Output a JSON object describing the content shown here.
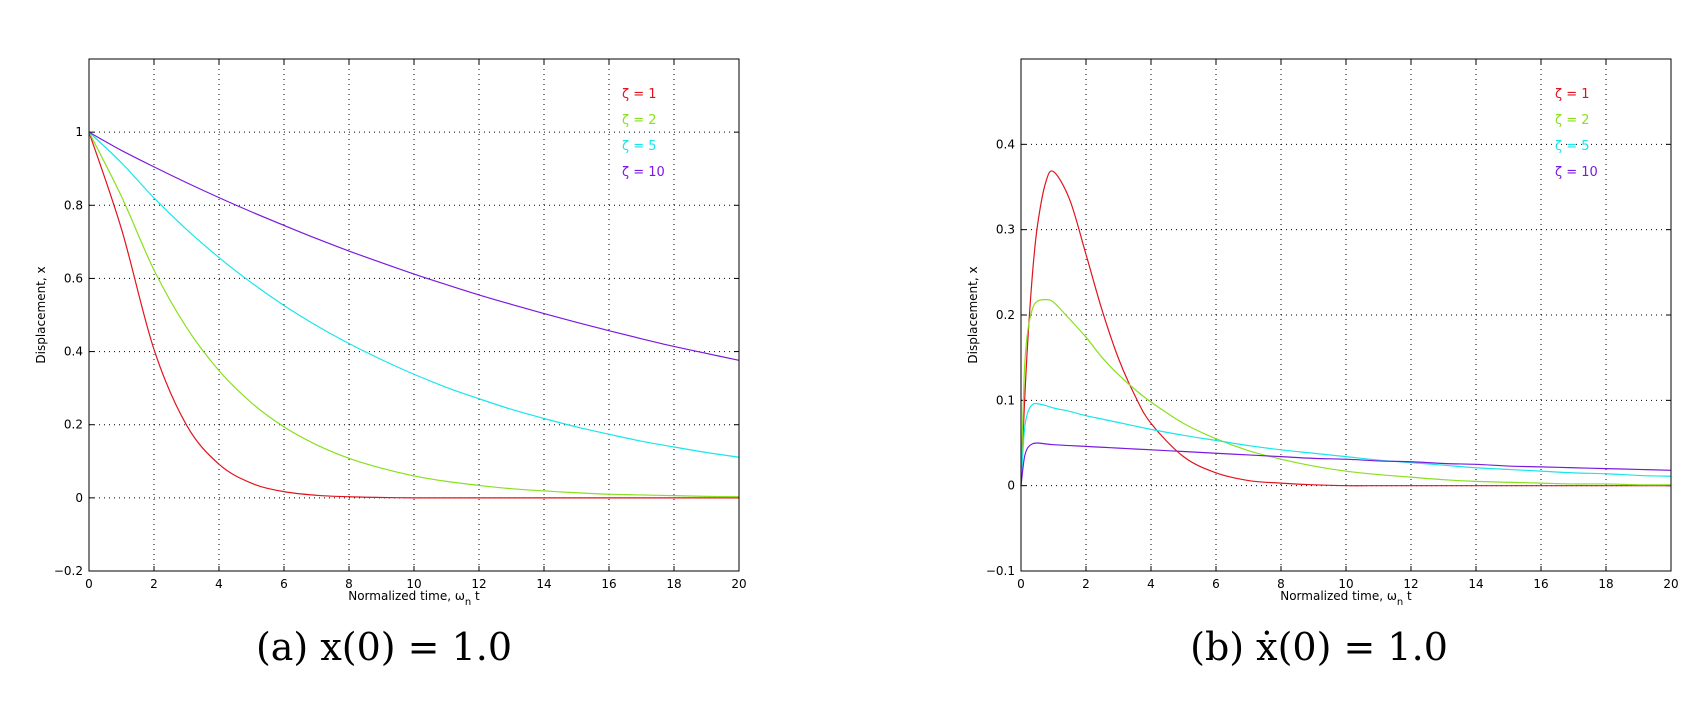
{
  "chart_data": [
    {
      "type": "line",
      "id": "a",
      "caption": "(a) x(0) = 1.0",
      "xlabel": "Normalized time, ω",
      "xlabel_sub": "n",
      "xlabel_tail": " t",
      "ylabel": "Displacement, x",
      "xlim": [
        0,
        20
      ],
      "ylim": [
        -0.2,
        1.2
      ],
      "xticks": [
        0,
        2,
        4,
        6,
        8,
        10,
        12,
        14,
        16,
        18,
        20
      ],
      "yticks": [
        -0.2,
        0,
        0.2,
        0.4,
        0.6,
        0.8,
        1
      ],
      "ytick_labels": [
        "−0.2",
        "0",
        "0.2",
        "0.4",
        "0.6",
        "0.8",
        "1"
      ],
      "grid": true,
      "legend_position": "top-right",
      "x": [
        0,
        1,
        2,
        3,
        4,
        5,
        6,
        7,
        8,
        9,
        10,
        11,
        12,
        13,
        14,
        15,
        16,
        17,
        18,
        19,
        20
      ],
      "series": [
        {
          "name": "ζ = 1",
          "color": "#e0141e",
          "values": [
            1,
            0.735,
            0.406,
            0.199,
            0.092,
            0.04,
            0.017,
            0.007,
            0.003,
            0.001,
            0,
            0,
            0,
            0,
            0,
            0,
            0,
            0,
            0,
            0,
            0
          ]
        },
        {
          "name": "ζ = 2",
          "color": "#88e01e",
          "values": [
            1,
            0.824,
            0.623,
            0.466,
            0.348,
            0.26,
            0.194,
            0.145,
            0.108,
            0.081,
            0.06,
            0.045,
            0.034,
            0.025,
            0.019,
            0.014,
            0.01,
            0.008,
            0.006,
            0.004,
            0.003
          ]
        },
        {
          "name": "ζ = 5",
          "color": "#19e6eb",
          "values": [
            1,
            0.916,
            0.82,
            0.734,
            0.657,
            0.588,
            0.526,
            0.471,
            0.422,
            0.378,
            0.338,
            0.302,
            0.271,
            0.242,
            0.217,
            0.194,
            0.174,
            0.155,
            0.139,
            0.124,
            0.111
          ]
        },
        {
          "name": "ζ = 10",
          "color": "#7a1ae0",
          "values": [
            1,
            0.95,
            0.905,
            0.862,
            0.821,
            0.782,
            0.745,
            0.709,
            0.675,
            0.643,
            0.612,
            0.583,
            0.555,
            0.529,
            0.504,
            0.48,
            0.457,
            0.435,
            0.414,
            0.395,
            0.376
          ]
        }
      ]
    },
    {
      "type": "line",
      "id": "b",
      "caption": "(b) ẋ(0) = 1.0",
      "xlabel": "Normalized time, ω",
      "xlabel_sub": "n",
      "xlabel_tail": " t",
      "ylabel": "Displacement, x",
      "xlim": [
        0,
        20
      ],
      "ylim": [
        -0.1,
        0.5
      ],
      "xticks": [
        0,
        2,
        4,
        6,
        8,
        10,
        12,
        14,
        16,
        18,
        20
      ],
      "yticks": [
        -0.1,
        0,
        0.1,
        0.2,
        0.3,
        0.4
      ],
      "ytick_labels": [
        "−0.1",
        "0",
        "0.1",
        "0.2",
        "0.3",
        "0.4"
      ],
      "grid": true,
      "legend_position": "top-right",
      "x": [
        0,
        0.1,
        0.2,
        0.35,
        0.5,
        0.75,
        1,
        1.5,
        2,
        2.5,
        3,
        3.5,
        4,
        5,
        6,
        7,
        8,
        9,
        10,
        11,
        12,
        13,
        14,
        15,
        16,
        17,
        18,
        19,
        20
      ],
      "series": [
        {
          "name": "ζ = 1",
          "color": "#e0141e",
          "values": [
            0,
            0.09,
            0.164,
            0.247,
            0.303,
            0.354,
            0.368,
            0.335,
            0.271,
            0.205,
            0.149,
            0.106,
            0.073,
            0.034,
            0.015,
            0.006,
            0.003,
            0.001,
            0,
            0,
            0,
            0,
            0,
            0,
            0,
            0,
            0,
            0,
            0
          ]
        },
        {
          "name": "ζ = 2",
          "color": "#88e01e",
          "values": [
            0,
            0.13,
            0.179,
            0.207,
            0.216,
            0.218,
            0.215,
            0.195,
            0.174,
            0.15,
            0.13,
            0.113,
            0.098,
            0.073,
            0.055,
            0.041,
            0.031,
            0.023,
            0.017,
            0.013,
            0.01,
            0.007,
            0.005,
            0.004,
            0.003,
            0.002,
            0.002,
            0.001,
            0.001
          ]
        },
        {
          "name": "ζ = 5",
          "color": "#19e6eb",
          "values": [
            0,
            0.063,
            0.085,
            0.095,
            0.096,
            0.094,
            0.091,
            0.087,
            0.082,
            0.078,
            0.074,
            0.07,
            0.066,
            0.059,
            0.053,
            0.047,
            0.042,
            0.038,
            0.034,
            0.03,
            0.027,
            0.024,
            0.021,
            0.019,
            0.017,
            0.015,
            0.014,
            0.012,
            0.011
          ]
        },
        {
          "name": "ζ = 10",
          "color": "#7a1ae0",
          "values": [
            0,
            0.032,
            0.044,
            0.049,
            0.05,
            0.049,
            0.048,
            0.047,
            0.046,
            0.045,
            0.044,
            0.043,
            0.042,
            0.04,
            0.038,
            0.036,
            0.034,
            0.032,
            0.031,
            0.029,
            0.028,
            0.026,
            0.025,
            0.023,
            0.022,
            0.021,
            0.02,
            0.019,
            0.018
          ]
        }
      ]
    }
  ]
}
